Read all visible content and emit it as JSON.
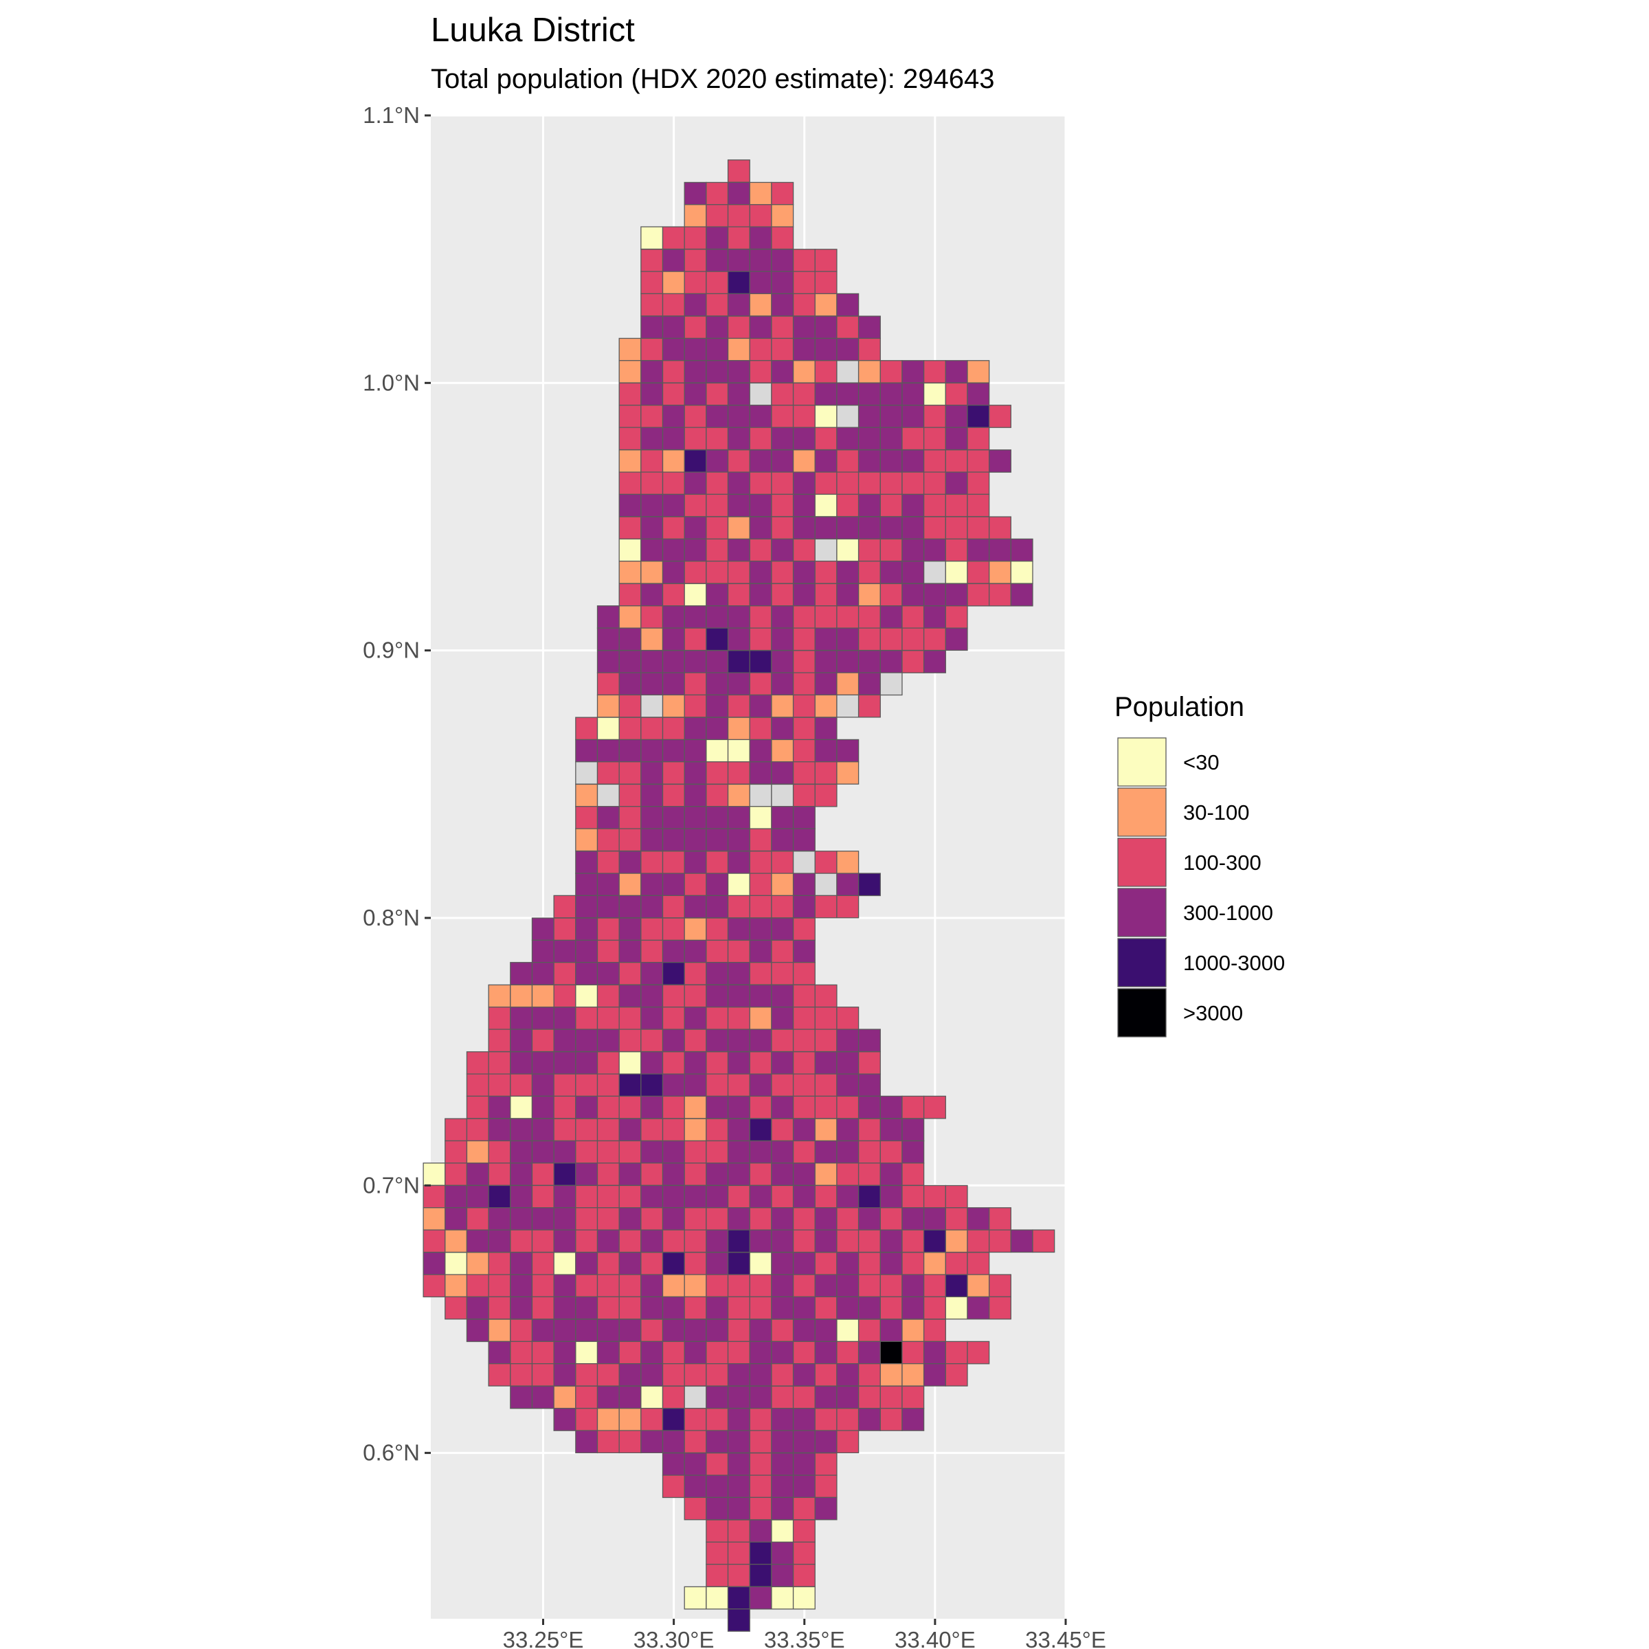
{
  "title": "Luuka District",
  "subtitle": "Total population (HDX 2020 estimate): 294643",
  "chart_data": {
    "type": "heatmap",
    "x_ticks": [
      {
        "value": 33.25,
        "label": "33.25°E"
      },
      {
        "value": 33.3,
        "label": "33.30°E"
      },
      {
        "value": 33.35,
        "label": "33.35°E"
      },
      {
        "value": 33.4,
        "label": "33.40°E"
      },
      {
        "value": 33.45,
        "label": "33.45°E"
      }
    ],
    "y_ticks": [
      {
        "value": 0.6,
        "label": "0.6°N"
      },
      {
        "value": 0.7,
        "label": "0.7°N"
      },
      {
        "value": 0.8,
        "label": "0.8°N"
      },
      {
        "value": 0.9,
        "label": "0.9°N"
      },
      {
        "value": 1.0,
        "label": "1.0°N"
      },
      {
        "value": 1.1,
        "label": "1.1°N"
      }
    ],
    "xlim": [
      33.207,
      33.45
    ],
    "ylim": [
      0.538,
      1.1
    ],
    "grid": true,
    "background": "#ebebeb",
    "no_data_color": "#d9d9d9",
    "legend": {
      "title": "Population",
      "position": "right",
      "classes": [
        {
          "label": "<30",
          "color": "#fcfdbf"
        },
        {
          "label": "30-100",
          "color": "#fea16e"
        },
        {
          "label": "100-300",
          "color": "#e0466a"
        },
        {
          "label": "300-1000",
          "color": "#8d2981"
        },
        {
          "label": "1000-3000",
          "color": "#3b0f70"
        },
        {
          "label": ">3000",
          "color": "#000004"
        }
      ]
    },
    "grid_cells": {
      "cell_size_deg": 0.00833,
      "origin_lon": 33.2083,
      "origin_lat": 0.5417,
      "code_legend": "0=<30, 1=30-100, 2=100-300, 3=300-1000, 4=1000-3000, 5=>3000, n=no data",
      "rows": [
        {
          "lat": 1.0792,
          "start_col": 14,
          "codes": "2"
        },
        {
          "lat": 1.0708,
          "start_col": 12,
          "codes": "32312"
        },
        {
          "lat": 1.0625,
          "start_col": 12,
          "codes": "12221"
        },
        {
          "lat": 1.0542,
          "start_col": 10,
          "codes": "0223232"
        },
        {
          "lat": 1.0458,
          "start_col": 10,
          "codes": "232333322"
        },
        {
          "lat": 1.0375,
          "start_col": 10,
          "codes": "212243322"
        },
        {
          "lat": 1.0292,
          "start_col": 10,
          "codes": "2232313213"
        },
        {
          "lat": 1.0208,
          "start_col": 10,
          "codes": "33232323323"
        },
        {
          "lat": 1.0125,
          "start_col": 9,
          "codes": "123331223332"
        },
        {
          "lat": 1.0042,
          "start_col": 9,
          "codes": "1323332312n123231"
        },
        {
          "lat": 0.9958,
          "start_col": 9,
          "codes": "232323n2233333023"
        },
        {
          "lat": 0.9875,
          "start_col": 9,
          "codes": "2232333220n3332342"
        },
        {
          "lat": 0.9792,
          "start_col": 9,
          "codes": "23322323323332232"
        },
        {
          "lat": 0.9708,
          "start_col": 9,
          "codes": "121432331323332223"
        },
        {
          "lat": 0.9625,
          "start_col": 9,
          "codes": "22232322322222232"
        },
        {
          "lat": 0.9542,
          "start_col": 9,
          "codes": "33322332302323222"
        },
        {
          "lat": 0.9458,
          "start_col": 9,
          "codes": "232321323333332222"
        },
        {
          "lat": 0.9375,
          "start_col": 9,
          "codes": "033323232n022332333"
        },
        {
          "lat": 0.9292,
          "start_col": 9,
          "codes": "11322232323233n0210"
        },
        {
          "lat": 0.9208,
          "start_col": 9,
          "codes": "2320323232312333223"
        },
        {
          "lat": 0.9125,
          "start_col": 8,
          "codes": "31233332322223232"
        },
        {
          "lat": 0.9042,
          "start_col": 8,
          "codes": "33132432323322223"
        },
        {
          "lat": 0.8958,
          "start_col": 8,
          "codes": "3333334432333323"
        },
        {
          "lat": 0.8875,
          "start_col": 8,
          "codes": "2333233232313n"
        },
        {
          "lat": 0.8792,
          "start_col": 8,
          "codes": "12n12323121n2"
        },
        {
          "lat": 0.8708,
          "start_col": 7,
          "codes": "202223312323"
        },
        {
          "lat": 0.8625,
          "start_col": 7,
          "codes": "3333330031233"
        },
        {
          "lat": 0.8542,
          "start_col": 7,
          "codes": "n223232233221"
        },
        {
          "lat": 0.8458,
          "start_col": 7,
          "codes": "1n232321nn22"
        },
        {
          "lat": 0.8375,
          "start_col": 7,
          "codes": "23233333033"
        },
        {
          "lat": 0.8292,
          "start_col": 7,
          "codes": "12233333233"
        },
        {
          "lat": 0.8208,
          "start_col": 7,
          "codes": "3232232322n21"
        },
        {
          "lat": 0.8125,
          "start_col": 7,
          "codes": "33133230213n34"
        },
        {
          "lat": 0.8042,
          "start_col": 6,
          "codes": "23333233222322"
        },
        {
          "lat": 0.7958,
          "start_col": 5,
          "codes": "3232322123332"
        },
        {
          "lat": 0.7875,
          "start_col": 5,
          "codes": "3332323322323"
        },
        {
          "lat": 0.7792,
          "start_col": 4,
          "codes": "33233234233222"
        },
        {
          "lat": 0.7708,
          "start_col": 3,
          "codes": "1112023322333322"
        },
        {
          "lat": 0.7625,
          "start_col": 3,
          "codes": "23332223232213222"
        },
        {
          "lat": 0.7542,
          "start_col": 3,
          "codes": "232333223233322233"
        },
        {
          "lat": 0.7458,
          "start_col": 2,
          "codes": "2233332032323232332"
        },
        {
          "lat": 0.7375,
          "start_col": 2,
          "codes": "2223222443322322233"
        },
        {
          "lat": 0.7292,
          "start_col": 2,
          "codes": "2303232232133232223322"
        },
        {
          "lat": 0.7208,
          "start_col": 1,
          "codes": "2233322232212342313233"
        },
        {
          "lat": 0.7125,
          "start_col": 1,
          "codes": "2123332223322333233223"
        },
        {
          "lat": 0.7042,
          "start_col": 0,
          "codes": "02323243232323323312232"
        },
        {
          "lat": 0.6958,
          "start_col": 0,
          "codes": "2334323222333323232343222"
        },
        {
          "lat": 0.6875,
          "start_col": 0,
          "codes": "132333322323223232323233232"
        },
        {
          "lat": 0.6792,
          "start_col": 0,
          "codes": "21332232323223433232232412232"
        },
        {
          "lat": 0.6708,
          "start_col": 0,
          "codes": "30123203232423403323232122"
        },
        {
          "lat": 0.6625,
          "start_col": 0,
          "codes": "212232322231122232332232412"
        },
        {
          "lat": 0.6542,
          "start_col": 1,
          "codes": "23232332233232233233232032"
        },
        {
          "lat": 0.6458,
          "start_col": 2,
          "codes": "3123333323332323302312"
        },
        {
          "lat": 0.6375,
          "start_col": 3,
          "codes": "32230323232233232352322"
        },
        {
          "lat": 0.6292,
          "start_col": 3,
          "codes": "2223223322233232321132"
        },
        {
          "lat": 0.6208,
          "start_col": 4,
          "codes": "33123302n3332233222"
        },
        {
          "lat": 0.6125,
          "start_col": 6,
          "codes": "32112422323322323"
        },
        {
          "lat": 0.6042,
          "start_col": 7,
          "codes": "3223323323332"
        },
        {
          "lat": 0.5958,
          "start_col": 11,
          "codes": "33232332"
        },
        {
          "lat": 0.5875,
          "start_col": 11,
          "codes": "23332332"
        },
        {
          "lat": 0.5792,
          "start_col": 12,
          "codes": "2332323"
        },
        {
          "lat": 0.5708,
          "start_col": 13,
          "codes": "22302"
        },
        {
          "lat": 0.5625,
          "start_col": 13,
          "codes": "22432"
        },
        {
          "lat": 0.5542,
          "start_col": 13,
          "codes": "22432"
        },
        {
          "lat": 0.5458,
          "start_col": 12,
          "codes": "004300"
        },
        {
          "lat": 0.5375,
          "start_col": 14,
          "codes": "4"
        }
      ]
    }
  }
}
